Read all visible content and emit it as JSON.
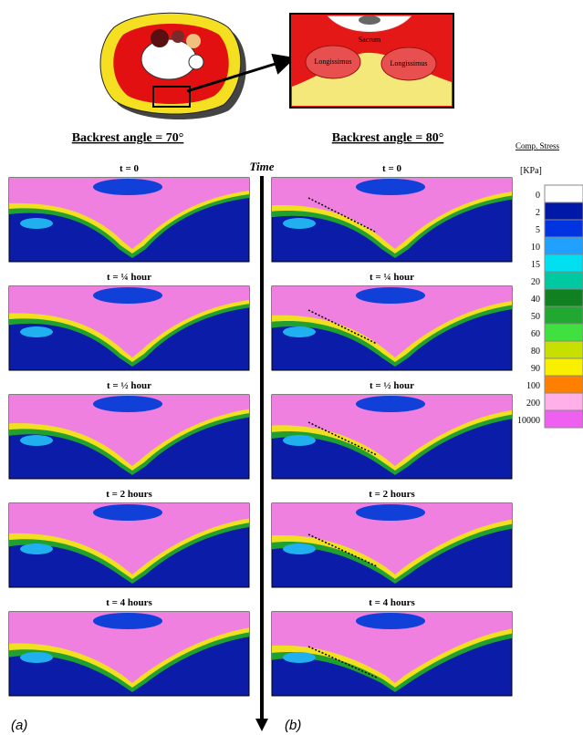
{
  "inset": {
    "labels": [
      "Sacrum",
      "Longissimus",
      "Longissimus"
    ]
  },
  "time_axis": "Time",
  "columns": [
    {
      "title": "Backrest angle = 70°",
      "caption": "(a)",
      "panels": [
        "t = 0",
        "t = ¼ hour",
        "t = ½ hour",
        "t = 2 hours",
        "t = 4 hours"
      ]
    },
    {
      "title": "Backrest angle = 80°",
      "caption": "(b)",
      "panels": [
        "t = 0",
        "t = ¼ hour",
        "t = ½ hour",
        "t = 2 hours",
        "t = 4 hours"
      ]
    }
  ],
  "legend": {
    "title": "Comp. Stress",
    "unit": "[KPa]",
    "levels": [
      {
        "value": 0,
        "color": "#ffffff"
      },
      {
        "value": 2,
        "color": "#0018a8"
      },
      {
        "value": 5,
        "color": "#0034e0"
      },
      {
        "value": 10,
        "color": "#20a0ff"
      },
      {
        "value": 15,
        "color": "#00e0f0"
      },
      {
        "value": 20,
        "color": "#00c8a0"
      },
      {
        "value": 40,
        "color": "#108020"
      },
      {
        "value": 50,
        "color": "#20a830"
      },
      {
        "value": 60,
        "color": "#40e040"
      },
      {
        "value": 80,
        "color": "#c8e000"
      },
      {
        "value": 90,
        "color": "#f8f000"
      },
      {
        "value": 100,
        "color": "#ff8000"
      },
      {
        "value": 200,
        "color": "#ffb0e8"
      },
      {
        "value": 10000,
        "color": "#f060f0"
      }
    ]
  }
}
